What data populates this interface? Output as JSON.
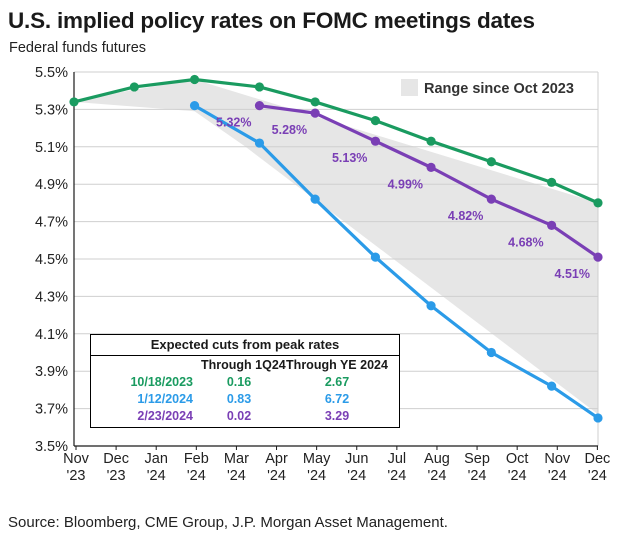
{
  "title": "U.S. implied policy rates on FOMC meetings dates",
  "subtitle": "Federal funds futures",
  "source": "Source: Bloomberg, CME Group, J.P. Morgan Asset Management.",
  "chart_data": {
    "type": "line",
    "x_ticks": [
      {
        "line1": "Nov",
        "line2": "'23"
      },
      {
        "line1": "Dec",
        "line2": "'23"
      },
      {
        "line1": "Jan",
        "line2": "'24"
      },
      {
        "line1": "Feb",
        "line2": "'24"
      },
      {
        "line1": "Mar",
        "line2": "'24"
      },
      {
        "line1": "Apr",
        "line2": "'24"
      },
      {
        "line1": "May",
        "line2": "'24"
      },
      {
        "line1": "Jun",
        "line2": "'24"
      },
      {
        "line1": "Jul",
        "line2": "'24"
      },
      {
        "line1": "Aug",
        "line2": "'24"
      },
      {
        "line1": "Sep",
        "line2": "'24"
      },
      {
        "line1": "Oct",
        "line2": "'24"
      },
      {
        "line1": "Nov",
        "line2": "'24"
      },
      {
        "line1": "Dec",
        "line2": "'24"
      }
    ],
    "xlim": [
      2023.83,
      2024.96
    ],
    "ylim": [
      3.5,
      5.5
    ],
    "y_ticks": [
      "3.5%",
      "3.7%",
      "3.9%",
      "4.1%",
      "4.3%",
      "4.5%",
      "4.7%",
      "4.9%",
      "5.1%",
      "5.3%",
      "5.5%"
    ],
    "y_tick_values": [
      3.5,
      3.7,
      3.9,
      4.1,
      4.3,
      4.5,
      4.7,
      4.9,
      5.1,
      5.3,
      5.5
    ],
    "grid": true,
    "range_band": {
      "label": "Range since Oct 2023",
      "color": "#e6e6e6",
      "upper": [
        [
          2023.83,
          5.35
        ],
        [
          2024.09,
          5.46
        ],
        [
          2024.96,
          4.8
        ]
      ],
      "lower": [
        [
          2023.83,
          5.34
        ],
        [
          2024.09,
          5.29
        ],
        [
          2024.2,
          5.1
        ],
        [
          2024.96,
          3.67
        ]
      ]
    },
    "series": [
      {
        "color": "#1a9b60",
        "points": [
          [
            2023.83,
            5.34
          ],
          [
            2023.96,
            5.42
          ],
          [
            2024.09,
            5.46
          ],
          [
            2024.23,
            5.42
          ],
          [
            2024.35,
            5.34
          ],
          [
            2024.48,
            5.24
          ],
          [
            2024.6,
            5.13
          ],
          [
            2024.73,
            5.02
          ],
          [
            2024.86,
            4.91
          ],
          [
            2024.96,
            4.8
          ]
        ]
      },
      {
        "color": "#2b9be8",
        "points": [
          [
            2024.09,
            5.32
          ],
          [
            2024.23,
            5.12
          ],
          [
            2024.35,
            4.82
          ],
          [
            2024.48,
            4.51
          ],
          [
            2024.6,
            4.25
          ],
          [
            2024.73,
            4.0
          ],
          [
            2024.86,
            3.82
          ],
          [
            2024.96,
            3.65
          ]
        ]
      },
      {
        "color": "#7a3fb5",
        "points": [
          [
            2024.23,
            5.32
          ],
          [
            2024.35,
            5.28
          ],
          [
            2024.48,
            5.13
          ],
          [
            2024.6,
            4.99
          ],
          [
            2024.73,
            4.82
          ],
          [
            2024.86,
            4.68
          ],
          [
            2024.96,
            4.51
          ]
        ],
        "point_labels": [
          "5.32%",
          "5.28%",
          "5.13%",
          "4.99%",
          "4.82%",
          "4.68%",
          "4.51%"
        ]
      }
    ]
  },
  "cuts_table": {
    "title": "Expected cuts from peak rates",
    "headers": [
      "",
      "Through 1Q24",
      "Through YE 2024"
    ],
    "rows": [
      {
        "date": "10/18/2023",
        "q1": "0.16",
        "ye": "2.67",
        "color": "#1a9b60"
      },
      {
        "date": "1/12/2024",
        "q1": "0.83",
        "ye": "6.72",
        "color": "#2b9be8"
      },
      {
        "date": "2/23/2024",
        "q1": "0.02",
        "ye": "3.29",
        "color": "#7a3fb5"
      }
    ]
  }
}
